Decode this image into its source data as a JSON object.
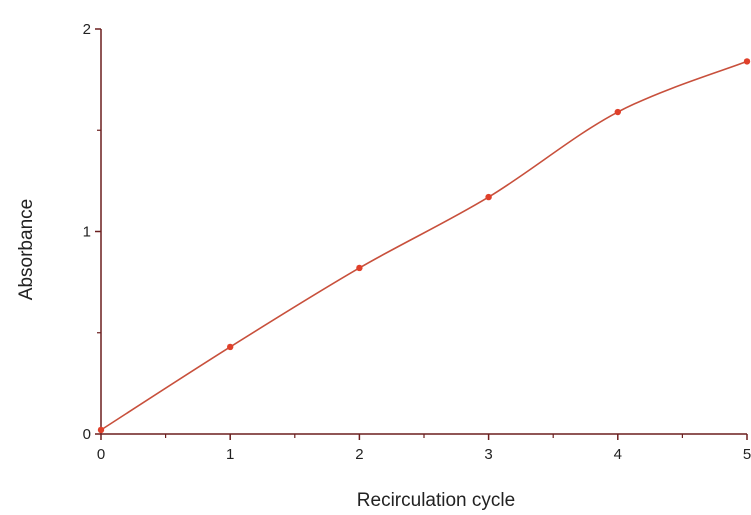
{
  "chart_data": {
    "type": "line",
    "xlabel": "Recirculation cycle",
    "ylabel": "Absorbance",
    "xlim": [
      0,
      5
    ],
    "ylim": [
      0,
      2
    ],
    "x_ticks": [
      0,
      1,
      2,
      3,
      4,
      5
    ],
    "y_ticks": [
      0,
      1,
      2
    ],
    "x_tick_labels": [
      "0",
      "1",
      "2",
      "3",
      "4",
      "5"
    ],
    "y_tick_labels": [
      "0",
      "1",
      "2"
    ],
    "x_minor_step": 0.5,
    "y_minor_step": 0.5,
    "grid": false,
    "legend": "none",
    "series": [
      {
        "x": [
          0,
          1,
          2,
          3,
          4,
          5
        ],
        "y": [
          0.02,
          0.43,
          0.82,
          1.17,
          1.59,
          1.84
        ],
        "color": "#e0402a"
      }
    ],
    "line_color": "#c8503c",
    "axis_color": "#6b1f1f"
  }
}
